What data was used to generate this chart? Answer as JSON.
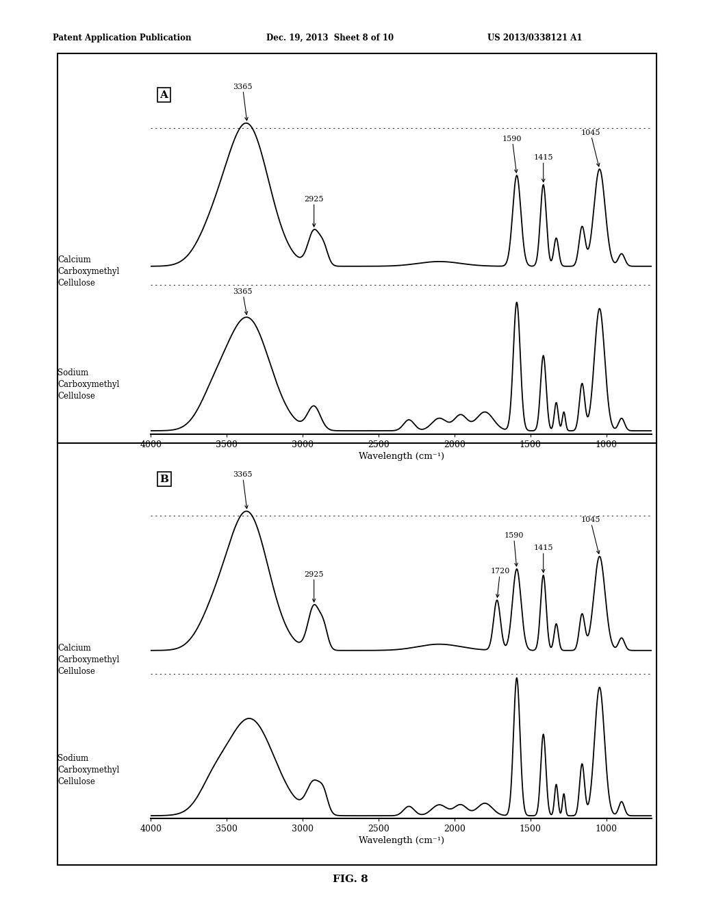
{
  "header_left": "Patent Application Publication",
  "header_mid": "Dec. 19, 2013  Sheet 8 of 10",
  "header_right": "US 2013/0338121 A1",
  "figure_label": "FIG. 8",
  "panel_A_label": "A",
  "panel_B_label": "B",
  "xlabel": "Wavelength (cm⁻¹)",
  "xmin": 4000,
  "xmax": 700,
  "label_CaCMC": "Calcium\nCarboxymethyl\nCellulose",
  "label_NaCMC": "Sodium\nCarboxymethyl\nCellulose",
  "background_color": "#ffffff",
  "line_color": "#000000"
}
